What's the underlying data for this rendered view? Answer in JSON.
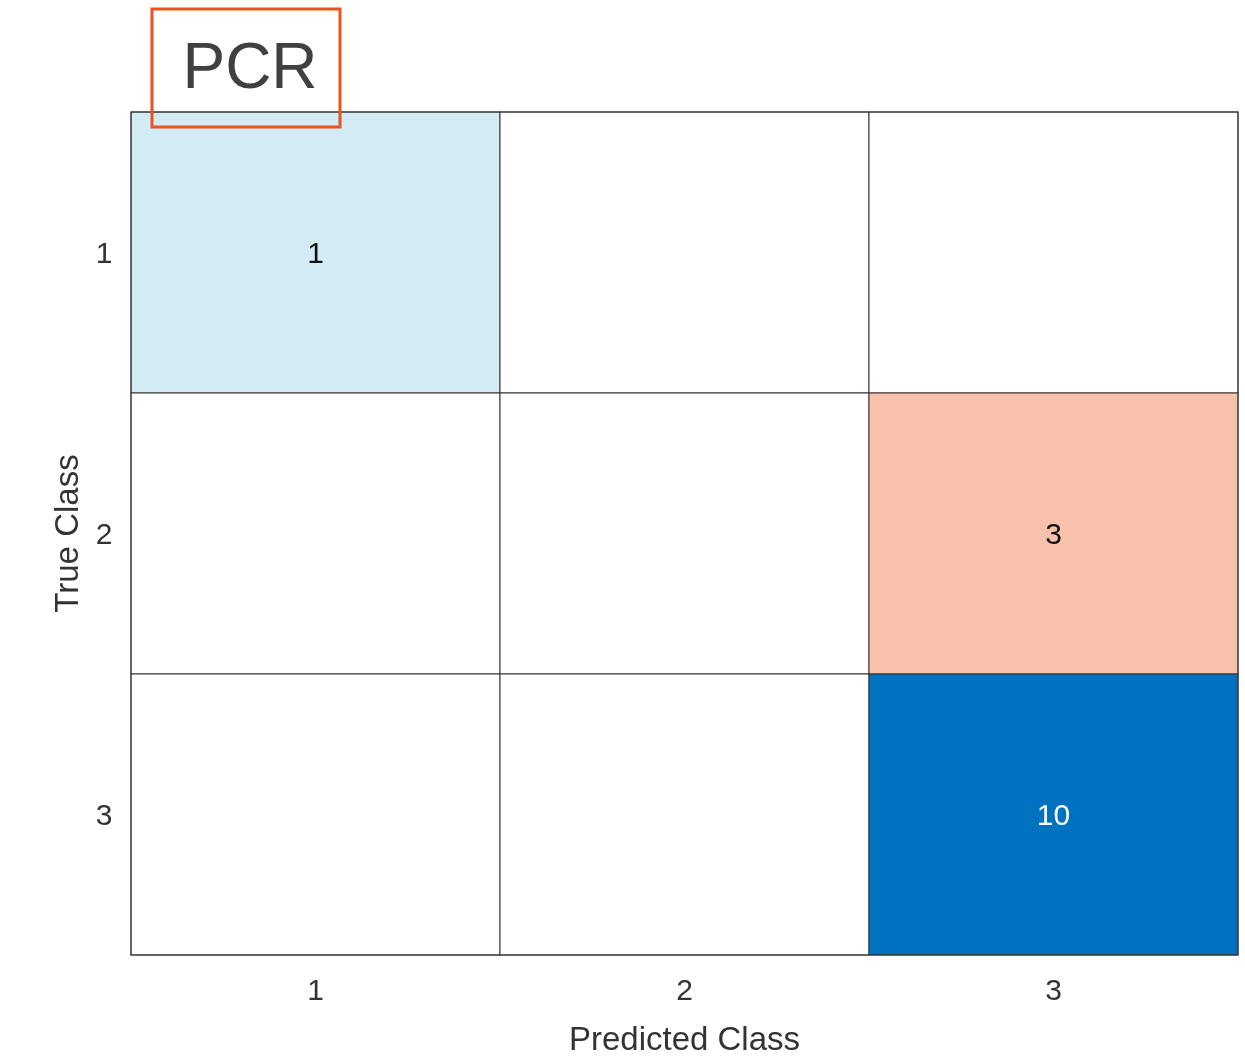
{
  "chart_data": {
    "type": "heatmap",
    "title": "PCR",
    "xlabel": "Predicted Class",
    "ylabel": "True Class",
    "categories": [
      "1",
      "2",
      "3"
    ],
    "y_categories": [
      "1",
      "2",
      "3"
    ],
    "cells": [
      [
        1,
        null,
        null
      ],
      [
        null,
        null,
        3
      ],
      [
        null,
        null,
        10
      ]
    ],
    "colors": [
      [
        "#d3ebf4",
        "#ffffff",
        "#ffffff"
      ],
      [
        "#ffffff",
        "#ffffff",
        "#f8c1ab"
      ],
      [
        "#ffffff",
        "#ffffff",
        "#0072bf"
      ]
    ],
    "data_labels": true
  }
}
